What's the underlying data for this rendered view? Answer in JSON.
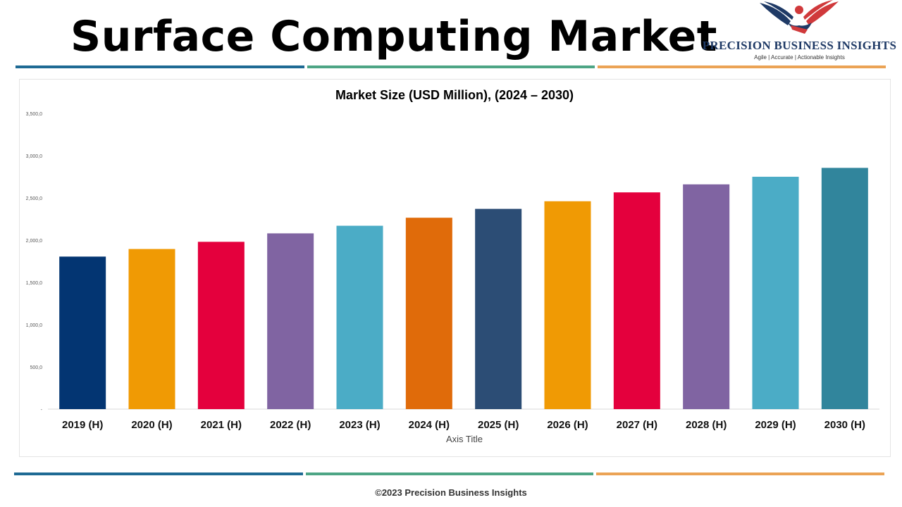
{
  "header": {
    "title": "Surface Computing Market"
  },
  "logo": {
    "name": "PRECISION BUSINESS INSIGHTS",
    "tagline": "Agile | Accurate | Actionable Insights",
    "icon": "eagle-handshake-logo-icon"
  },
  "colors": {
    "divider_blue": "#1e6a94",
    "divider_green": "#4da585",
    "divider_orange": "#eba355"
  },
  "chart_data": {
    "type": "bar",
    "title": "Market Size (USD Million), (2024 – 2030)",
    "xlabel": "Axis Title",
    "ylabel": "",
    "ylim": [
      0,
      3500
    ],
    "yticks": [
      0,
      500,
      1000,
      1500,
      2000,
      2500,
      3000,
      3500
    ],
    "ytick_labels": [
      "-",
      "500,0",
      "1,000,0",
      "1,500,0",
      "2,000,0",
      "2,500,0",
      "3,000,0",
      "3,500,0"
    ],
    "categories": [
      "2019 (H)",
      "2020 (H)",
      "2021 (H)",
      "2022 (H)",
      "2023 (H)",
      "2024 (H)",
      "2025 (H)",
      "2026 (H)",
      "2027 (H)",
      "2028 (H)",
      "2029 (H)",
      "2030 (H)"
    ],
    "values": [
      1805,
      1895,
      1980,
      2080,
      2170,
      2265,
      2370,
      2460,
      2565,
      2660,
      2750,
      2855
    ],
    "bar_colors": [
      "#033572",
      "#f09a04",
      "#e4003d",
      "#8064a2",
      "#4bacc6",
      "#e06b0a",
      "#2c4d75",
      "#f09a04",
      "#e4003d",
      "#8064a2",
      "#4bacc6",
      "#31859c"
    ],
    "grid": false,
    "legend": "none"
  },
  "footer": {
    "copyright": "©2023 Precision Business Insights"
  }
}
